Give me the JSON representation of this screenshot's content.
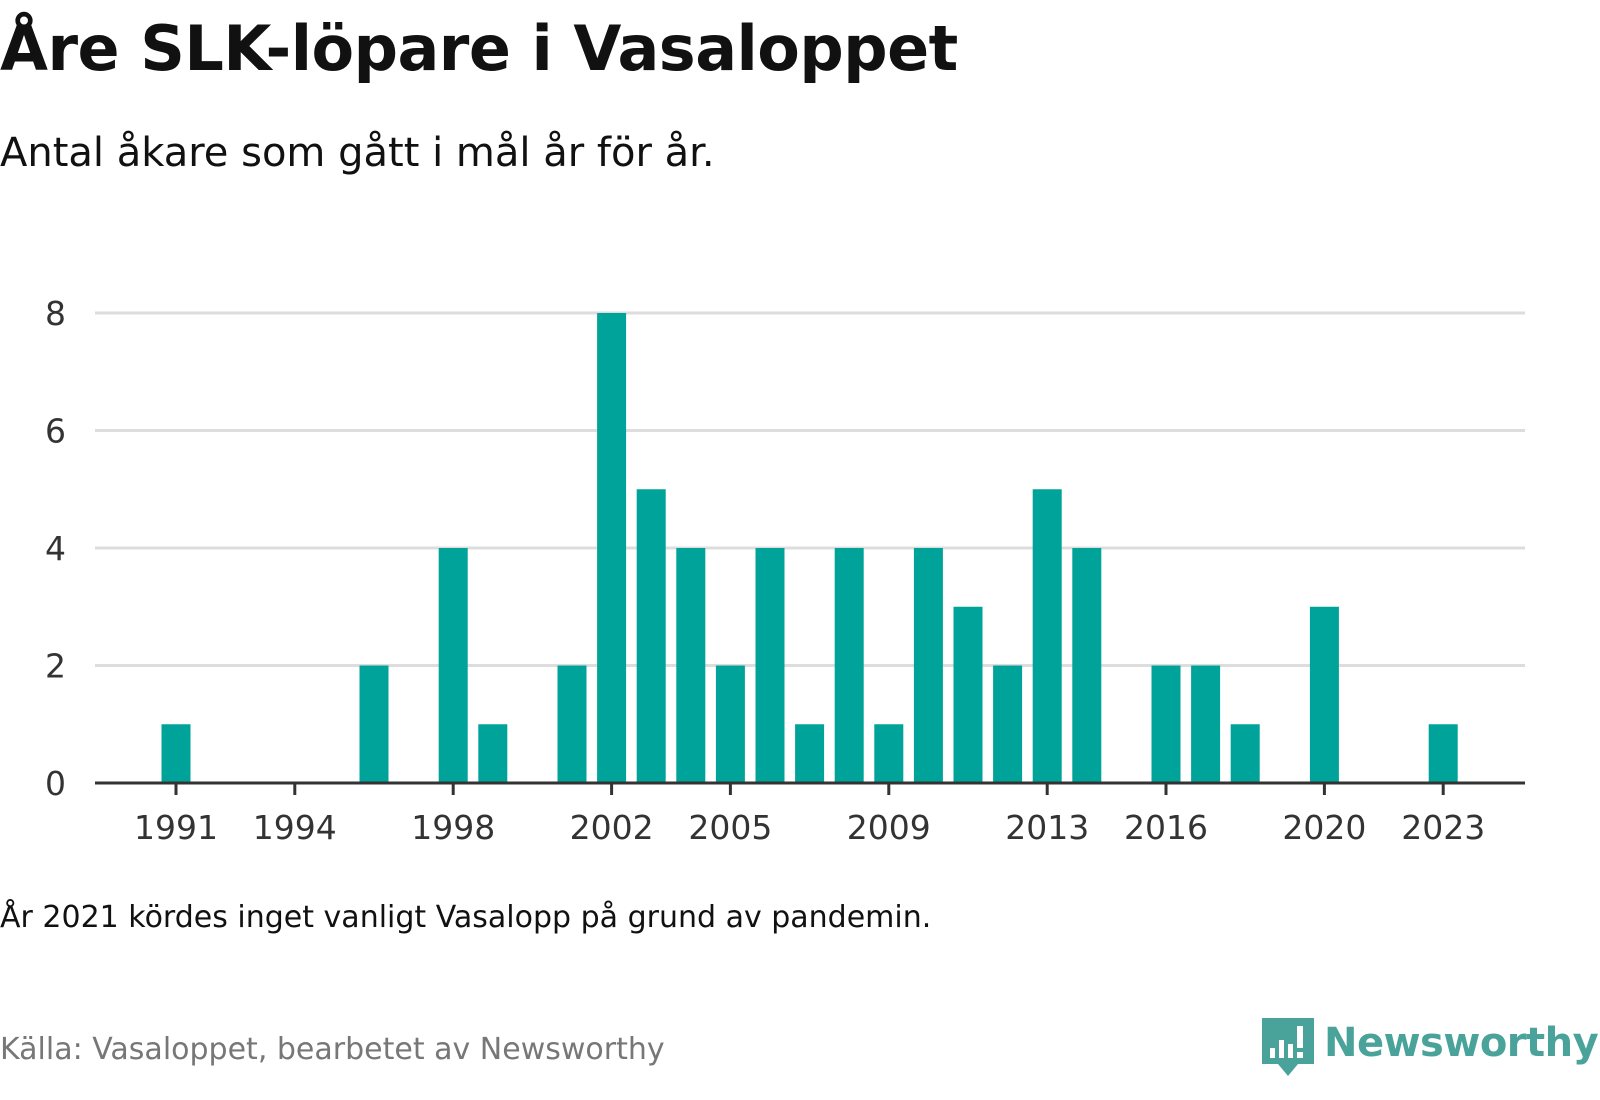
{
  "header": {
    "title": "Åre SLK-löpare i Vasaloppet",
    "subtitle": "Antal åkare som gått i mål år för år."
  },
  "footer": {
    "note": "År 2021 kördes inget vanligt Vasalopp på grund av pandemin.",
    "source": "Källa: Vasaloppet, bearbetet av Newsworthy",
    "logo_text": "Newsworthy"
  },
  "colors": {
    "bar": "#00a39a",
    "gridline": "#dddddd",
    "axis": "#333333",
    "logo": "#4aa39a"
  },
  "chart_data": {
    "type": "bar",
    "title": "Åre SLK-löpare i Vasaloppet",
    "subtitle": "Antal åkare som gått i mål år för år.",
    "xlabel": "",
    "ylabel": "",
    "ylim": [
      0,
      8
    ],
    "yticks": [
      0,
      2,
      4,
      6,
      8
    ],
    "xticks": [
      1991,
      1994,
      1998,
      2002,
      2005,
      2009,
      2013,
      2016,
      2020,
      2023
    ],
    "grid": true,
    "categories": [
      1991,
      1992,
      1993,
      1994,
      1995,
      1996,
      1997,
      1998,
      1999,
      2000,
      2001,
      2002,
      2003,
      2004,
      2005,
      2006,
      2007,
      2008,
      2009,
      2010,
      2011,
      2012,
      2013,
      2014,
      2015,
      2016,
      2017,
      2018,
      2019,
      2020,
      2021,
      2022,
      2023
    ],
    "values": [
      1,
      0,
      0,
      0,
      0,
      2,
      0,
      4,
      1,
      0,
      2,
      8,
      5,
      4,
      2,
      4,
      1,
      4,
      1,
      4,
      3,
      2,
      5,
      4,
      0,
      2,
      2,
      1,
      0,
      3,
      0,
      0,
      1
    ]
  }
}
